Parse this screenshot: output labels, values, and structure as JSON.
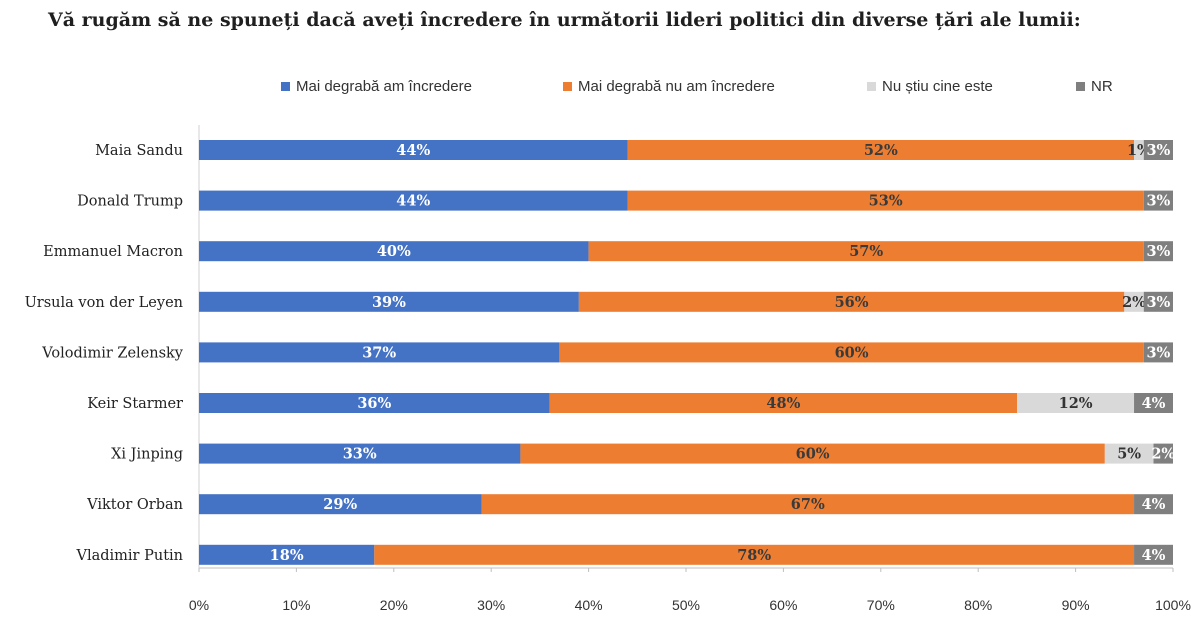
{
  "title": "Vă rugăm să ne spuneți dacă aveți încredere în următorii lideri politici din diverse țări ale lumii:",
  "chart_data": {
    "type": "bar",
    "orientation": "horizontal",
    "stacked": true,
    "categories": [
      "Maia Sandu",
      "Donald Trump",
      "Emmanuel Macron",
      "Ursula von der Leyen",
      "Volodimir Zelensky",
      "Keir Starmer",
      "Xi Jinping",
      "Viktor Orban",
      "Vladimir Putin"
    ],
    "series": [
      {
        "name": "Mai degrabă am încredere",
        "color": "#4472C4",
        "label_color": "#ffffff",
        "values": [
          44,
          44,
          40,
          39,
          37,
          36,
          33,
          29,
          18
        ]
      },
      {
        "name": "Mai degrabă nu am încredere",
        "color": "#ED7D31",
        "label_color": "#3a3a3a",
        "values": [
          52,
          53,
          57,
          56,
          60,
          48,
          60,
          67,
          78
        ]
      },
      {
        "name": "Nu știu cine este",
        "color": "#D9D9D9",
        "label_color": "#333333",
        "values": [
          1,
          0,
          0,
          2,
          0,
          12,
          5,
          0,
          0
        ]
      },
      {
        "name": "NR",
        "color": "#7F7F7F",
        "label_color": "#ffffff",
        "values": [
          3,
          3,
          3,
          3,
          3,
          4,
          2,
          4,
          4
        ]
      }
    ],
    "x_ticks": [
      "0%",
      "10%",
      "20%",
      "30%",
      "40%",
      "50%",
      "60%",
      "70%",
      "80%",
      "90%",
      "100%"
    ],
    "xlim": [
      0,
      100
    ],
    "legend_position": "top",
    "grid": false
  }
}
